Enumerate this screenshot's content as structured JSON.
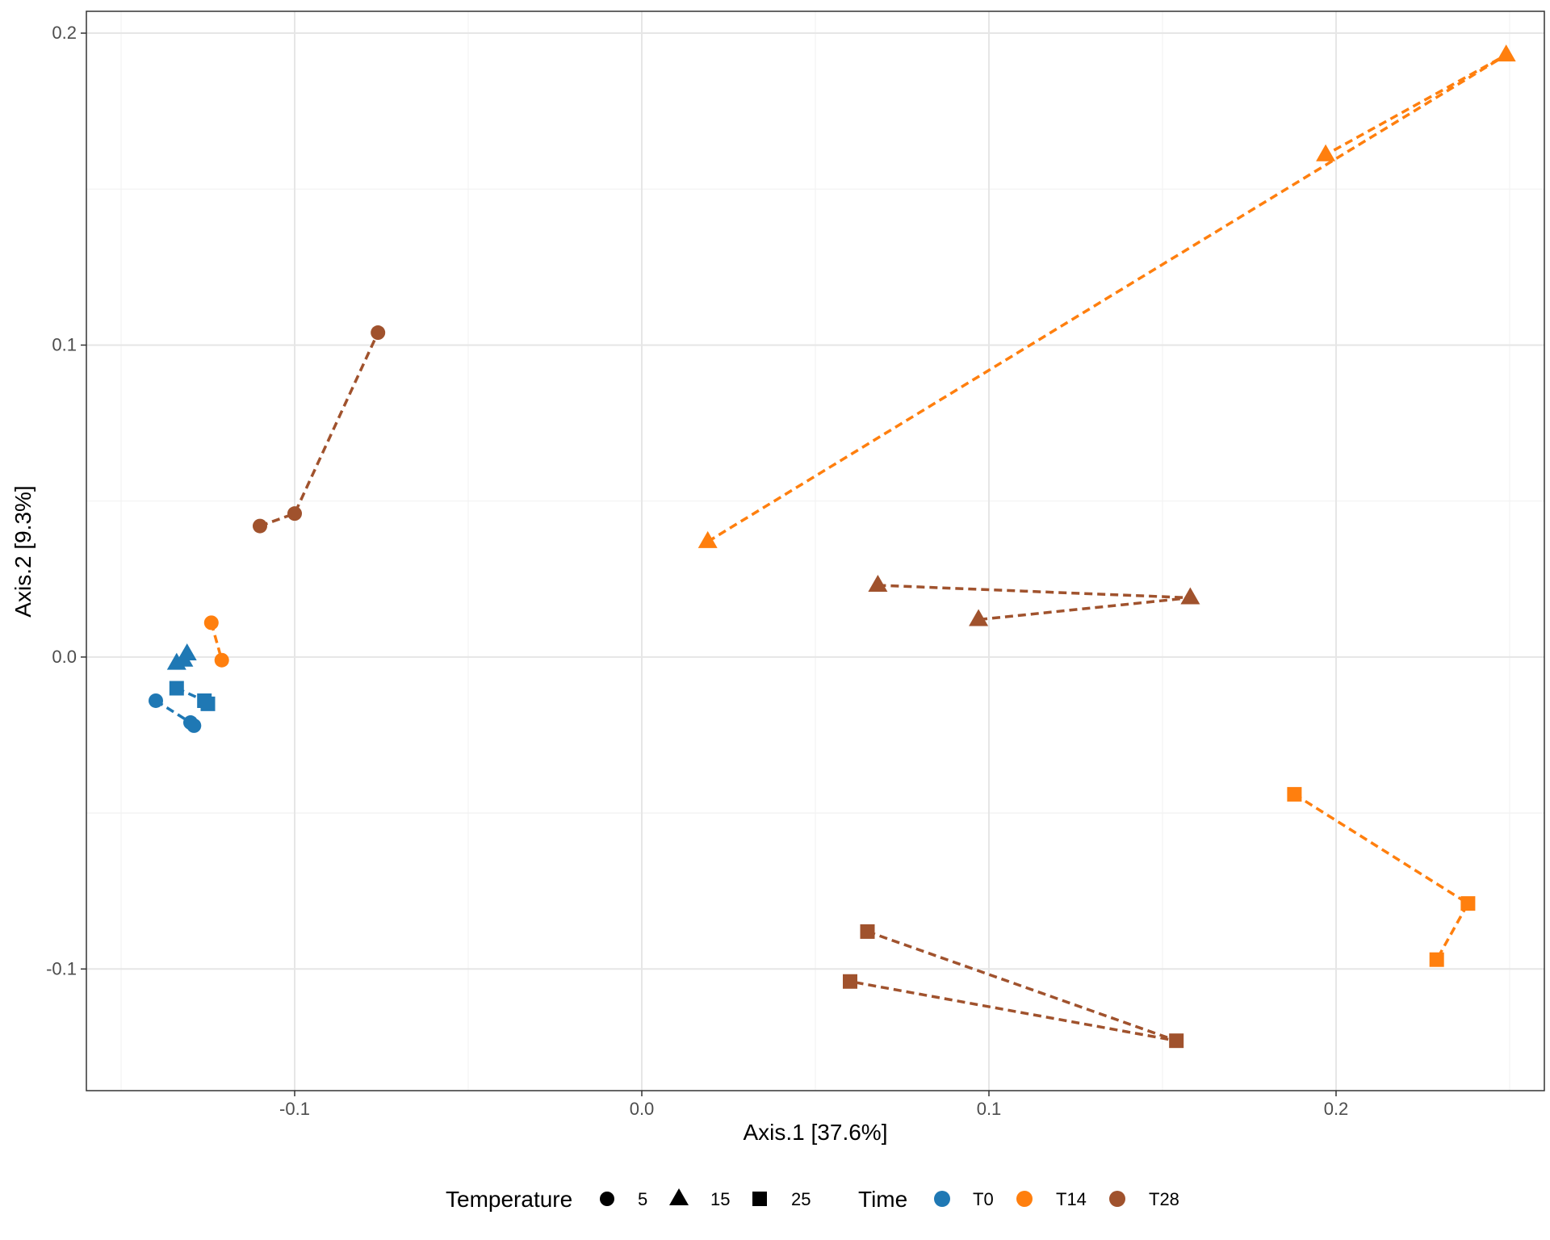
{
  "chart_data": {
    "type": "scatter",
    "xlabel": "Axis.1   [37.6%]",
    "ylabel": "Axis.2   [9.3%]",
    "xlim": [
      -0.16,
      0.26
    ],
    "ylim": [
      -0.139,
      0.207
    ],
    "x_ticks": [
      -0.1,
      0.0,
      0.1,
      0.2
    ],
    "x_tick_labels": [
      "-0.1",
      "0.0",
      "0.1",
      "0.2"
    ],
    "y_ticks": [
      -0.1,
      0.0,
      0.1,
      0.2
    ],
    "y_tick_labels": [
      "-0.1",
      "0.0",
      "0.1",
      "0.2"
    ],
    "x_minor_ticks": [
      -0.15,
      -0.05,
      0.05,
      0.15,
      0.25
    ],
    "y_minor_ticks": [
      -0.05,
      0.05,
      0.15
    ],
    "grid": true,
    "legend_position": "bottom",
    "colors": {
      "T0": "#1f78b4",
      "T14": "#ff7f0e",
      "T28": "#a0522d"
    },
    "legend": {
      "temperature": {
        "title": "Temperature",
        "items": [
          {
            "label": "5",
            "shape": "circle"
          },
          {
            "label": "15",
            "shape": "triangle"
          },
          {
            "label": "25",
            "shape": "square"
          }
        ]
      },
      "time": {
        "title": "Time",
        "items": [
          {
            "label": "T0",
            "color": "#1f78b4"
          },
          {
            "label": "T14",
            "color": "#ff7f0e"
          },
          {
            "label": "T28",
            "color": "#a0522d"
          }
        ]
      }
    },
    "groups": [
      {
        "time": "T0",
        "temperature": "5",
        "shape": "circle",
        "points": [
          [
            -0.14,
            -0.014
          ],
          [
            -0.13,
            -0.021
          ],
          [
            -0.129,
            -0.022
          ]
        ]
      },
      {
        "time": "T0",
        "temperature": "15",
        "shape": "triangle",
        "points": [
          [
            -0.134,
            -0.002
          ],
          [
            -0.131,
            0.001
          ],
          [
            -0.132,
            -0.001
          ]
        ]
      },
      {
        "time": "T0",
        "temperature": "25",
        "shape": "square",
        "points": [
          [
            -0.134,
            -0.01
          ],
          [
            -0.126,
            -0.014
          ],
          [
            -0.125,
            -0.015
          ]
        ]
      },
      {
        "time": "T14",
        "temperature": "5",
        "shape": "circle",
        "points": [
          [
            -0.124,
            0.011
          ],
          [
            -0.121,
            -0.001
          ]
        ]
      },
      {
        "time": "T14",
        "temperature": "15",
        "shape": "triangle",
        "points": [
          [
            0.019,
            0.037
          ],
          [
            0.249,
            0.193
          ],
          [
            0.197,
            0.161
          ]
        ]
      },
      {
        "time": "T14",
        "temperature": "25",
        "shape": "square",
        "points": [
          [
            0.188,
            -0.044
          ],
          [
            0.238,
            -0.079
          ],
          [
            0.229,
            -0.097
          ]
        ]
      },
      {
        "time": "T28",
        "temperature": "5",
        "shape": "circle",
        "points": [
          [
            -0.11,
            0.042
          ],
          [
            -0.1,
            0.046
          ],
          [
            -0.076,
            0.104
          ]
        ]
      },
      {
        "time": "T28",
        "temperature": "15",
        "shape": "triangle",
        "points": [
          [
            0.068,
            0.023
          ],
          [
            0.158,
            0.019
          ],
          [
            0.097,
            0.012
          ]
        ]
      },
      {
        "time": "T28",
        "temperature": "25",
        "shape": "square",
        "points": [
          [
            0.065,
            -0.088
          ],
          [
            0.154,
            -0.123
          ],
          [
            0.06,
            -0.104
          ]
        ]
      }
    ]
  }
}
